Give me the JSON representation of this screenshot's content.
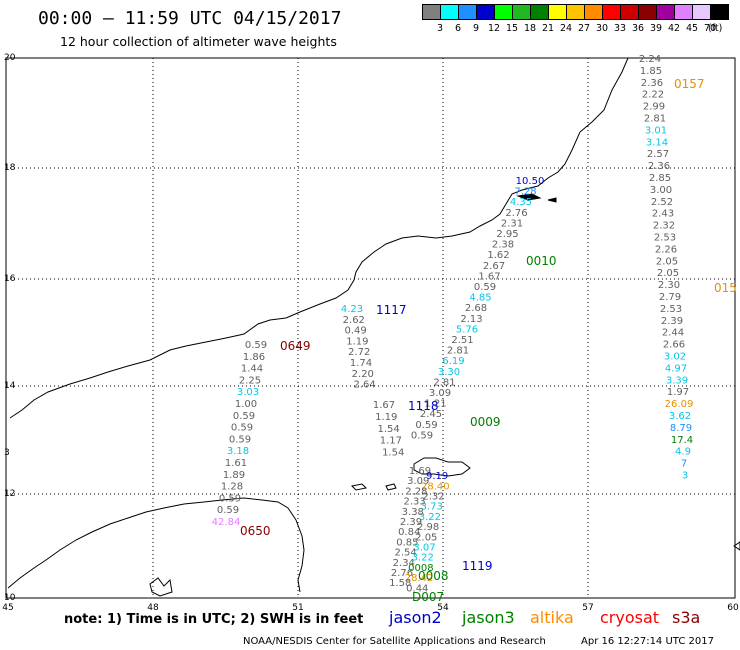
{
  "header": {
    "title": "00:00 – 11:59 UTC 04/15/2017",
    "subtitle": "12 hour collection of altimeter wave heights"
  },
  "legend": {
    "unit": "(ft)",
    "bins": [
      {
        "label": "3",
        "color": "#808080"
      },
      {
        "label": "6",
        "color": "#00ffff"
      },
      {
        "label": "9",
        "color": "#1e90ff"
      },
      {
        "label": "12",
        "color": "#0000cd"
      },
      {
        "label": "15",
        "color": "#00ff00"
      },
      {
        "label": "18",
        "color": "#22b822"
      },
      {
        "label": "21",
        "color": "#008000"
      },
      {
        "label": "24",
        "color": "#ffff00"
      },
      {
        "label": "27",
        "color": "#ffc400"
      },
      {
        "label": "30",
        "color": "#ff8c00"
      },
      {
        "label": "33",
        "color": "#ff0000"
      },
      {
        "label": "36",
        "color": "#cc0000"
      },
      {
        "label": "39",
        "color": "#8b0000"
      },
      {
        "label": "42",
        "color": "#a000a0"
      },
      {
        "label": "45",
        "color": "#e080ff"
      },
      {
        "label": "70",
        "color": "#e6c8ff"
      },
      {
        "label": "",
        "color": "#000000"
      }
    ]
  },
  "axes": {
    "lon_ticks": [
      "45",
      "48",
      "51",
      "54",
      "57",
      "60"
    ],
    "lat_ticks": [
      "20",
      "18",
      "16",
      "14",
      "12",
      "10"
    ],
    "lat_left_label": "3"
  },
  "tracks": [
    {
      "id": "t0157",
      "label": "0157",
      "label_color": "#e89000",
      "values": [
        "2.24",
        "1.85",
        "2.36",
        "2.22",
        "2.99",
        "2.81",
        "3.01",
        "3.14",
        "2.57",
        "2.36",
        "2.85",
        "3.00",
        "2.52",
        "2.43",
        "2.32",
        "2.53",
        "2.26",
        "2.05",
        "2.05",
        "2.30",
        "2.79",
        "2.53",
        "2.39",
        "2.44",
        "2.66",
        "3.02",
        "4.97",
        "3.39",
        "1.97",
        "26.09",
        "3.62",
        "8.79",
        "17.4",
        "4.9",
        "7",
        "3"
      ],
      "colors": [
        "#606060",
        "#606060",
        "#606060",
        "#606060",
        "#606060",
        "#606060",
        "#00c8e6",
        "#00c8e6",
        "#606060",
        "#606060",
        "#606060",
        "#606060",
        "#606060",
        "#606060",
        "#606060",
        "#606060",
        "#606060",
        "#606060",
        "#606060",
        "#606060",
        "#606060",
        "#606060",
        "#606060",
        "#606060",
        "#606060",
        "#00c8e6",
        "#00c8e6",
        "#00c8e6",
        "#606060",
        "#e89000",
        "#00c8e6",
        "#1e90ff",
        "#008000",
        "#00c8e6",
        "#1e90ff",
        "#00c8e6"
      ]
    },
    {
      "id": "t0157b",
      "label": "015",
      "label_color": "#e89000"
    },
    {
      "id": "t0010",
      "label": "0010",
      "label_color": "#008000",
      "values": [
        "10.50",
        "7.28",
        "4.35",
        "2.76",
        "2.31",
        "2.95",
        "2.38",
        "1.62",
        "2.67",
        "1.67",
        "0.59",
        "4.85",
        "2.68",
        "2.13",
        "5.76",
        "2.51",
        "2.81",
        "6.19",
        "3.30",
        "2.81",
        "3.09",
        "1.21",
        "2.45",
        "0.59",
        "0.59"
      ],
      "colors": [
        "#0000cd",
        "#1e90ff",
        "#00c8e6",
        "#606060",
        "#606060",
        "#606060",
        "#606060",
        "#606060",
        "#606060",
        "#606060",
        "#606060",
        "#00c8e6",
        "#606060",
        "#606060",
        "#00c8e6",
        "#606060",
        "#606060",
        "#00c8e6",
        "#00c8e6",
        "#606060",
        "#606060",
        "#606060",
        "#606060",
        "#606060",
        "#606060"
      ]
    },
    {
      "id": "t1117",
      "label": "1117",
      "label_color": "#0000cd",
      "values": [
        "4.23",
        "2.62",
        "0.49",
        "1.19",
        "2.72",
        "1.74",
        "2.20",
        "2.64"
      ],
      "colors": [
        "#00c8e6",
        "#606060",
        "#606060",
        "#606060",
        "#606060",
        "#606060",
        "#606060",
        "#606060"
      ]
    },
    {
      "id": "t1118",
      "label": "1118",
      "label_color": "#0000cd",
      "values": [
        "1.67",
        "1.19",
        "1.54",
        "1.17",
        "1.54"
      ],
      "colors": [
        "#606060",
        "#606060",
        "#606060",
        "#606060",
        "#606060"
      ]
    },
    {
      "id": "t0009",
      "label": "0009",
      "label_color": "#008000"
    },
    {
      "id": "t0649",
      "label": "0649",
      "label_color": "#8b0000",
      "values": [
        "0.59",
        "1.86",
        "1.44",
        "2.25",
        "3.03",
        "1.00",
        "0.59",
        "0.59",
        "0.59",
        "3.18",
        "1.61",
        "1.89",
        "1.28",
        "0.59",
        "0.59",
        "42.84"
      ],
      "colors": [
        "#606060",
        "#606060",
        "#606060",
        "#606060",
        "#00c8e6",
        "#606060",
        "#606060",
        "#606060",
        "#606060",
        "#00c8e6",
        "#606060",
        "#606060",
        "#606060",
        "#606060",
        "#606060",
        "#e080ff"
      ]
    },
    {
      "id": "t0650",
      "label": "0650",
      "label_color": "#8b0000"
    },
    {
      "id": "t1119",
      "label": "1119",
      "label_color": "#0000cd",
      "values": [
        "1.69",
        "9.19",
        "3.09",
        "28.40",
        "2.28",
        "2.32",
        "2.33",
        "3.73",
        "3.38",
        "3.22",
        "2.39",
        "2.98",
        "0.84",
        "2.05",
        "0.85",
        "3.07",
        "2.54",
        "3.22",
        "2.34",
        "0008",
        "2.76",
        "28.42",
        "1.58",
        "0.44"
      ],
      "colors": [
        "#606060",
        "#0000cd",
        "#606060",
        "#e89000",
        "#606060",
        "#606060",
        "#606060",
        "#00c8e6",
        "#606060",
        "#00c8e6",
        "#606060",
        "#606060",
        "#606060",
        "#606060",
        "#606060",
        "#00c8e6",
        "#606060",
        "#00c8e6",
        "#606060",
        "#008000",
        "#606060",
        "#e89000",
        "#606060",
        "#606060"
      ]
    },
    {
      "id": "t0008",
      "label": "0008",
      "label_color": "#008000"
    },
    {
      "id": "t0007",
      "label": "D007",
      "label_color": "#008000"
    }
  ],
  "footer": {
    "note": "note: 1) Time is in UTC; 2) SWH is in feet",
    "satellites": [
      {
        "name": "jason2",
        "color": "#0000cd"
      },
      {
        "name": "jason3",
        "color": "#008000"
      },
      {
        "name": "altika",
        "color": "#ff8c00"
      },
      {
        "name": "cryosat",
        "color": "#ff0000"
      },
      {
        "name": "s3a",
        "color": "#8b0000"
      }
    ],
    "credit": "NOAA/NESDIS Center for Satellite Applications and Research",
    "timestamp": "Apr 16 12:27:14 UTC 2017"
  }
}
